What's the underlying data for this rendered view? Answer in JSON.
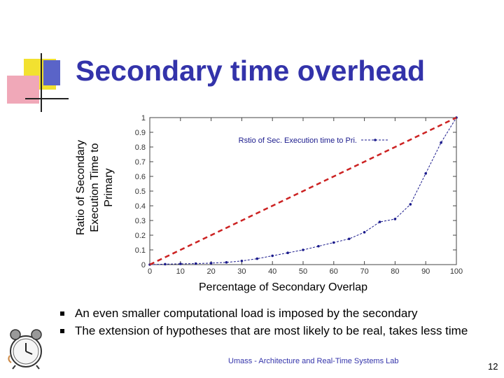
{
  "slide": {
    "title": "Secondary time overhead",
    "bullets": [
      "An even smaller computational load is imposed by the secondary",
      "The extension of hypotheses that are most likely to be real, takes less time"
    ],
    "footer": "Umass - Architecture and Real-Time Systems Lab",
    "page_number": "12"
  },
  "chart_data": {
    "type": "line",
    "ylabel_lines": [
      "Ratio of Secondary",
      "Execution Time to",
      "Primary"
    ],
    "xlabel": "Percentage of Secondary Overlap",
    "xlim": [
      0,
      100
    ],
    "ylim": [
      0,
      1
    ],
    "x_ticks": [
      0,
      10,
      20,
      30,
      40,
      50,
      60,
      70,
      80,
      90,
      100
    ],
    "y_ticks": [
      0,
      0.1,
      0.2,
      0.3,
      0.4,
      0.5,
      0.6,
      0.7,
      0.8,
      0.9,
      1
    ],
    "y_tick_labels": [
      "0",
      "0.1",
      "0.2",
      "0.3",
      "0.4",
      "0.5",
      "0.6",
      "0.7",
      "0.8",
      "0.9",
      "1"
    ],
    "legend_position": "top",
    "series": [
      {
        "name": "Rstio of Sec. Execution time to Pri.",
        "color": "#1a1a8c",
        "x": [
          0,
          5,
          10,
          15,
          20,
          25,
          30,
          35,
          40,
          45,
          50,
          55,
          60,
          65,
          70,
          75,
          80,
          85,
          90,
          95,
          100
        ],
        "values": [
          0.0,
          0.003,
          0.005,
          0.007,
          0.01,
          0.015,
          0.025,
          0.04,
          0.06,
          0.08,
          0.1,
          0.125,
          0.15,
          0.175,
          0.22,
          0.29,
          0.31,
          0.41,
          0.62,
          0.83,
          1.0
        ]
      }
    ],
    "reference_line": {
      "x": [
        0,
        100
      ],
      "values": [
        0,
        1
      ],
      "color": "#cc2222",
      "style": "dashed"
    }
  }
}
